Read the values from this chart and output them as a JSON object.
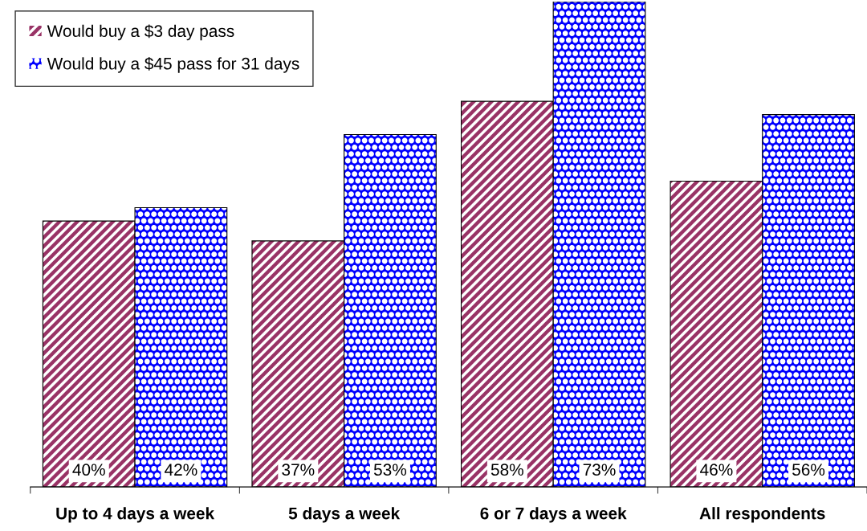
{
  "chart_data": {
    "type": "bar",
    "categories": [
      "Up to 4 days a week",
      "5 days a week",
      "6 or 7 days a week",
      "All respondents"
    ],
    "series": [
      {
        "name": "Would buy a $3 day pass",
        "color": "#993366",
        "values": [
          40,
          37,
          58,
          46
        ],
        "value_labels": [
          "40%",
          "37%",
          "58%",
          "46%"
        ]
      },
      {
        "name": "Would buy a $45 pass for 31 days",
        "color": "#0000ff",
        "values": [
          42,
          53,
          73,
          56
        ],
        "value_labels": [
          "42%",
          "53%",
          "73%",
          "56%"
        ]
      }
    ],
    "legend": "top left",
    "grid": false
  }
}
